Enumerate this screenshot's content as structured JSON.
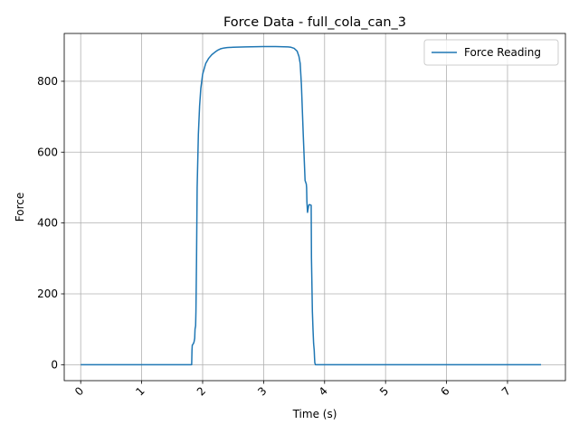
{
  "chart_data": {
    "type": "line",
    "title": "Force Data - full_cola_can_3",
    "xlabel": "Time (s)",
    "ylabel": "Force",
    "xlim": [
      -0.27,
      7.95
    ],
    "ylim": [
      -45,
      935
    ],
    "xticks": [
      0,
      1,
      2,
      3,
      4,
      5,
      6,
      7
    ],
    "yticks": [
      0,
      200,
      400,
      600,
      800
    ],
    "xtick_rotation": 45,
    "grid": true,
    "legend_position": "upper right",
    "series": [
      {
        "name": "Force Reading",
        "color": "#1f77b4",
        "x": [
          0.0,
          0.5,
          1.0,
          1.5,
          1.82,
          1.825,
          1.83,
          1.85,
          1.86,
          1.87,
          1.875,
          1.88,
          1.885,
          1.89,
          1.9,
          1.91,
          1.93,
          1.95,
          1.97,
          2.0,
          2.05,
          2.1,
          2.15,
          2.2,
          2.25,
          2.3,
          2.35,
          2.4,
          2.5,
          2.7,
          3.0,
          3.2,
          3.4,
          3.45,
          3.5,
          3.55,
          3.58,
          3.6,
          3.62,
          3.65,
          3.68,
          3.7,
          3.705,
          3.71,
          3.72,
          3.73,
          3.74,
          3.75,
          3.78,
          3.785,
          3.79,
          3.8,
          3.81,
          3.82,
          3.83,
          3.835,
          3.84,
          3.85,
          3.86,
          4.0,
          5.0,
          6.0,
          7.0,
          7.55
        ],
        "y": [
          0,
          0,
          0,
          0,
          0,
          40,
          55,
          60,
          65,
          75,
          100,
          105,
          110,
          150,
          300,
          500,
          650,
          730,
          780,
          820,
          850,
          865,
          875,
          882,
          888,
          892,
          894,
          895,
          896,
          897,
          898,
          898,
          897,
          896,
          893,
          885,
          870,
          850,
          790,
          650,
          520,
          510,
          500,
          460,
          430,
          440,
          450,
          452,
          450,
          300,
          250,
          150,
          100,
          60,
          40,
          20,
          5,
          0,
          0,
          0,
          0,
          0,
          0,
          0
        ]
      }
    ]
  }
}
